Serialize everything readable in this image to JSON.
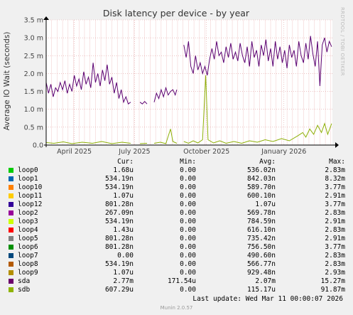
{
  "chart_data": {
    "type": "line",
    "title": "Disk latency per device - by year",
    "ylabel": "Average IO Wait (seconds)",
    "ylim": [
      0,
      3.5
    ],
    "y_ticks": [
      {
        "value": 0.0,
        "label": "0.0"
      },
      {
        "value": 0.5,
        "label": "0.5 m"
      },
      {
        "value": 1.0,
        "label": "1.0 m"
      },
      {
        "value": 1.5,
        "label": "1.5 m"
      },
      {
        "value": 2.0,
        "label": "2.0 m"
      },
      {
        "value": 2.5,
        "label": "2.5 m"
      },
      {
        "value": 3.0,
        "label": "3.0 m"
      },
      {
        "value": 3.5,
        "label": "3.5 m"
      }
    ],
    "x_range": [
      "2025-03-10",
      "2026-03-11"
    ],
    "x_ticks": [
      {
        "date": "2025-04-15",
        "label": "April 2025"
      },
      {
        "date": "2025-07-01",
        "label": "July 2025"
      },
      {
        "date": "2025-10-01",
        "label": "October 2025"
      },
      {
        "date": "2026-01-08",
        "label": "January 2026"
      }
    ],
    "grid": true,
    "series": [
      {
        "name": "sda",
        "color": "#5a0071",
        "segments": [
          [
            [
              "2025-03-10",
              1.75
            ],
            [
              "2025-03-13",
              1.45
            ],
            [
              "2025-03-16",
              1.7
            ],
            [
              "2025-03-19",
              1.35
            ],
            [
              "2025-03-22",
              1.6
            ],
            [
              "2025-03-25",
              1.5
            ],
            [
              "2025-03-28",
              1.75
            ],
            [
              "2025-03-31",
              1.55
            ],
            [
              "2025-04-03",
              1.8
            ],
            [
              "2025-04-06",
              1.45
            ],
            [
              "2025-04-09",
              1.7
            ],
            [
              "2025-04-12",
              1.5
            ],
            [
              "2025-04-15",
              1.95
            ],
            [
              "2025-04-18",
              1.65
            ],
            [
              "2025-04-21",
              1.85
            ],
            [
              "2025-04-24",
              1.55
            ],
            [
              "2025-04-27",
              2.05
            ],
            [
              "2025-04-30",
              1.7
            ],
            [
              "2025-05-03",
              1.9
            ],
            [
              "2025-05-06",
              1.6
            ],
            [
              "2025-05-09",
              2.3
            ],
            [
              "2025-05-12",
              1.75
            ],
            [
              "2025-05-15",
              2.0
            ],
            [
              "2025-05-18",
              1.65
            ],
            [
              "2025-05-21",
              2.1
            ],
            [
              "2025-05-24",
              1.8
            ],
            [
              "2025-05-27",
              2.25
            ],
            [
              "2025-05-30",
              1.7
            ],
            [
              "2025-06-02",
              1.9
            ],
            [
              "2025-06-05",
              1.45
            ],
            [
              "2025-06-08",
              1.75
            ],
            [
              "2025-06-11",
              1.3
            ],
            [
              "2025-06-14",
              1.55
            ],
            [
              "2025-06-17",
              1.2
            ],
            [
              "2025-06-20",
              1.35
            ],
            [
              "2025-06-23",
              1.15
            ],
            [
              "2025-06-26",
              1.2
            ]
          ],
          [
            [
              "2025-07-08",
              1.2
            ],
            [
              "2025-07-11",
              1.15
            ],
            [
              "2025-07-14",
              1.22
            ],
            [
              "2025-07-17",
              1.15
            ]
          ],
          [
            [
              "2025-07-26",
              1.2
            ],
            [
              "2025-07-29",
              1.45
            ],
            [
              "2025-08-01",
              1.3
            ],
            [
              "2025-08-04",
              1.55
            ],
            [
              "2025-08-07",
              1.35
            ],
            [
              "2025-08-10",
              1.6
            ],
            [
              "2025-08-13",
              1.4
            ],
            [
              "2025-08-16",
              1.5
            ],
            [
              "2025-08-19",
              1.55
            ],
            [
              "2025-08-22",
              1.4
            ],
            [
              "2025-08-24",
              1.55
            ]
          ],
          [
            [
              "2025-09-02",
              2.8
            ],
            [
              "2025-09-05",
              2.45
            ],
            [
              "2025-09-08",
              2.9
            ],
            [
              "2025-09-11",
              2.2
            ],
            [
              "2025-09-14",
              2.0
            ],
            [
              "2025-09-17",
              2.5
            ],
            [
              "2025-09-20",
              2.1
            ],
            [
              "2025-09-23",
              2.3
            ],
            [
              "2025-09-26",
              2.0
            ],
            [
              "2025-09-29",
              2.2
            ],
            [
              "2025-10-02",
              1.95
            ],
            [
              "2025-10-05",
              2.4
            ],
            [
              "2025-10-08",
              2.7
            ],
            [
              "2025-10-11",
              2.4
            ],
            [
              "2025-10-14",
              2.9
            ],
            [
              "2025-10-17",
              2.5
            ],
            [
              "2025-10-20",
              2.6
            ],
            [
              "2025-10-23",
              2.3
            ],
            [
              "2025-10-26",
              2.75
            ],
            [
              "2025-10-29",
              2.45
            ],
            [
              "2025-11-01",
              2.85
            ],
            [
              "2025-11-04",
              2.4
            ],
            [
              "2025-11-07",
              2.6
            ],
            [
              "2025-11-10",
              2.35
            ],
            [
              "2025-11-13",
              2.85
            ],
            [
              "2025-11-16",
              2.5
            ],
            [
              "2025-11-19",
              2.3
            ],
            [
              "2025-11-22",
              2.75
            ],
            [
              "2025-11-25",
              2.2
            ],
            [
              "2025-11-28",
              2.9
            ],
            [
              "2025-12-01",
              2.45
            ],
            [
              "2025-12-04",
              2.65
            ],
            [
              "2025-12-07",
              2.2
            ],
            [
              "2025-12-10",
              2.8
            ],
            [
              "2025-12-13",
              2.5
            ],
            [
              "2025-12-16",
              2.95
            ],
            [
              "2025-12-19",
              2.35
            ],
            [
              "2025-12-22",
              2.7
            ],
            [
              "2025-12-25",
              2.2
            ],
            [
              "2025-12-28",
              2.9
            ],
            [
              "2025-12-31",
              2.4
            ],
            [
              "2026-01-03",
              2.75
            ],
            [
              "2026-01-06",
              2.3
            ],
            [
              "2026-01-09",
              2.65
            ],
            [
              "2026-01-12",
              2.15
            ],
            [
              "2026-01-15",
              2.8
            ],
            [
              "2026-01-18",
              2.45
            ],
            [
              "2026-01-21",
              2.65
            ],
            [
              "2026-01-24",
              2.2
            ],
            [
              "2026-01-27",
              2.9
            ],
            [
              "2026-01-30",
              2.5
            ],
            [
              "2026-02-02",
              2.3
            ],
            [
              "2026-02-05",
              2.85
            ],
            [
              "2026-02-08",
              2.4
            ],
            [
              "2026-02-11",
              3.05
            ],
            [
              "2026-02-14",
              2.55
            ],
            [
              "2026-02-17",
              2.2
            ],
            [
              "2026-02-20",
              2.9
            ],
            [
              "2026-02-23",
              1.65
            ],
            [
              "2026-02-26",
              2.8
            ],
            [
              "2026-03-01",
              3.0
            ],
            [
              "2026-03-04",
              2.6
            ],
            [
              "2026-03-07",
              2.9
            ],
            [
              "2026-03-10",
              2.75
            ]
          ]
        ]
      },
      {
        "name": "sdb",
        "color": "#8db007",
        "segments": [
          [
            [
              "2025-03-10",
              0.07
            ],
            [
              "2025-03-20",
              0.05
            ],
            [
              "2025-04-01",
              0.09
            ],
            [
              "2025-04-12",
              0.04
            ],
            [
              "2025-04-25",
              0.08
            ],
            [
              "2025-05-08",
              0.05
            ],
            [
              "2025-05-20",
              0.1
            ],
            [
              "2025-06-02",
              0.04
            ],
            [
              "2025-06-15",
              0.08
            ],
            [
              "2025-06-26",
              0.05
            ]
          ],
          [
            [
              "2025-07-08",
              0.04
            ],
            [
              "2025-07-17",
              0.05
            ]
          ],
          [
            [
              "2025-07-26",
              0.05
            ],
            [
              "2025-08-03",
              0.08
            ],
            [
              "2025-08-10",
              0.04
            ],
            [
              "2025-08-16",
              0.45
            ],
            [
              "2025-08-19",
              0.1
            ],
            [
              "2025-08-24",
              0.05
            ]
          ],
          [
            [
              "2025-09-02",
              0.1
            ],
            [
              "2025-09-08",
              0.05
            ],
            [
              "2025-09-14",
              0.12
            ],
            [
              "2025-09-20",
              0.06
            ],
            [
              "2025-09-26",
              0.15
            ],
            [
              "2025-09-30",
              1.95
            ],
            [
              "2025-10-03",
              0.15
            ],
            [
              "2025-10-10",
              0.06
            ],
            [
              "2025-10-18",
              0.12
            ],
            [
              "2025-10-26",
              0.05
            ],
            [
              "2025-11-05",
              0.1
            ],
            [
              "2025-11-15",
              0.05
            ],
            [
              "2025-11-25",
              0.12
            ],
            [
              "2025-12-05",
              0.08
            ],
            [
              "2025-12-15",
              0.15
            ],
            [
              "2025-12-25",
              0.1
            ],
            [
              "2026-01-05",
              0.18
            ],
            [
              "2026-01-15",
              0.12
            ],
            [
              "2026-01-25",
              0.25
            ],
            [
              "2026-02-01",
              0.35
            ],
            [
              "2026-02-05",
              0.22
            ],
            [
              "2026-02-10",
              0.45
            ],
            [
              "2026-02-15",
              0.3
            ],
            [
              "2026-02-20",
              0.55
            ],
            [
              "2026-02-25",
              0.35
            ],
            [
              "2026-03-01",
              0.6
            ],
            [
              "2026-03-05",
              0.3
            ],
            [
              "2026-03-10",
              0.6
            ]
          ]
        ]
      }
    ]
  },
  "side_label": "RRDTOOL / TOBI OETIKER",
  "legend": {
    "headers": {
      "cur": "Cur:",
      "min": "Min:",
      "avg": "Avg:",
      "max": "Max:"
    },
    "rows": [
      {
        "name": "loop0",
        "color": "#00cc00",
        "cur": "1.68u",
        "min": "0.00",
        "avg": "536.02n",
        "max": "2.83m"
      },
      {
        "name": "loop1",
        "color": "#0066b3",
        "cur": "534.19n",
        "min": "0.00",
        "avg": "842.03n",
        "max": "8.32m"
      },
      {
        "name": "loop10",
        "color": "#ff8000",
        "cur": "534.19n",
        "min": "0.00",
        "avg": "589.70n",
        "max": "3.77m"
      },
      {
        "name": "loop11",
        "color": "#ffcc00",
        "cur": "1.07u",
        "min": "0.00",
        "avg": "600.10n",
        "max": "2.91m"
      },
      {
        "name": "loop12",
        "color": "#330099",
        "cur": "801.28n",
        "min": "0.00",
        "avg": "1.07u",
        "max": "3.77m"
      },
      {
        "name": "loop2",
        "color": "#990099",
        "cur": "267.09n",
        "min": "0.00",
        "avg": "569.78n",
        "max": "2.83m"
      },
      {
        "name": "loop3",
        "color": "#ccff00",
        "cur": "534.19n",
        "min": "0.00",
        "avg": "784.59n",
        "max": "2.91m"
      },
      {
        "name": "loop4",
        "color": "#ff0000",
        "cur": "1.43u",
        "min": "0.00",
        "avg": "616.10n",
        "max": "2.83m"
      },
      {
        "name": "loop5",
        "color": "#808080",
        "cur": "801.28n",
        "min": "0.00",
        "avg": "735.42n",
        "max": "2.91m"
      },
      {
        "name": "loop6",
        "color": "#008f00",
        "cur": "801.28n",
        "min": "0.00",
        "avg": "756.50n",
        "max": "3.77m"
      },
      {
        "name": "loop7",
        "color": "#00487d",
        "cur": "0.00",
        "min": "0.00",
        "avg": "490.60n",
        "max": "2.83m"
      },
      {
        "name": "loop8",
        "color": "#b35a00",
        "cur": "534.19n",
        "min": "0.00",
        "avg": "566.77n",
        "max": "2.83m"
      },
      {
        "name": "loop9",
        "color": "#b38f00",
        "cur": "1.07u",
        "min": "0.00",
        "avg": "929.48n",
        "max": "2.93m"
      },
      {
        "name": "sda",
        "color": "#6b006b",
        "cur": "2.77m",
        "min": "171.54u",
        "avg": "2.07m",
        "max": "15.27m"
      },
      {
        "name": "sdb",
        "color": "#8fb300",
        "cur": "607.29u",
        "min": "0.00",
        "avg": "115.17u",
        "max": "91.87m"
      }
    ]
  },
  "last_update": "Last update: Wed Mar 11 00:00:07 2026",
  "footer": "Munin 2.0.57"
}
